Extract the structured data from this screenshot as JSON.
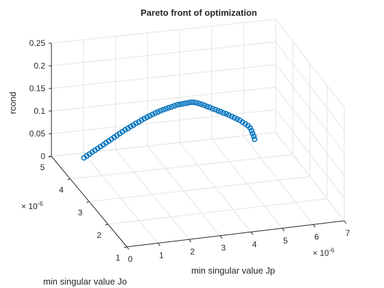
{
  "chart_data": {
    "type": "scatter",
    "title": "Pareto front of optimization",
    "xlabel": "min singular value Jp",
    "ylabel": "min singular value Jo",
    "zlabel": "rcond",
    "x_exponent_label": "× 10",
    "x_exponent_power": "-6",
    "y_exponent_label": "× 10",
    "y_exponent_power": "-6",
    "xlim": [
      0,
      7
    ],
    "ylim": [
      1,
      5
    ],
    "zlim": [
      0,
      0.25
    ],
    "x_ticks": [
      0,
      1,
      2,
      3,
      4,
      5,
      6,
      7
    ],
    "x_tick_labels": [
      "0",
      "1",
      "2",
      "3",
      "4",
      "5",
      "6",
      "7"
    ],
    "y_ticks": [
      1,
      2,
      3,
      4,
      5
    ],
    "y_tick_labels": [
      "1",
      "2",
      "3",
      "4",
      "5"
    ],
    "z_ticks": [
      0,
      0.05,
      0.1,
      0.15,
      0.2,
      0.25
    ],
    "z_tick_labels": [
      "0",
      "0.05",
      "0.1",
      "0.15",
      "0.2",
      "0.25"
    ],
    "grid": true,
    "marker_color": "#0072BD",
    "series": [
      {
        "points": [
          [
            0.9,
            4.8,
            0.0
          ],
          [
            0.98,
            4.79,
            0.004
          ],
          [
            1.06,
            4.78,
            0.008
          ],
          [
            1.14,
            4.77,
            0.012
          ],
          [
            1.22,
            4.76,
            0.016
          ],
          [
            1.3,
            4.75,
            0.02
          ],
          [
            1.38,
            4.74,
            0.024
          ],
          [
            1.46,
            4.73,
            0.028
          ],
          [
            1.54,
            4.72,
            0.032
          ],
          [
            1.62,
            4.71,
            0.036
          ],
          [
            1.7,
            4.7,
            0.04
          ],
          [
            1.78,
            4.69,
            0.044
          ],
          [
            1.86,
            4.68,
            0.048
          ],
          [
            1.94,
            4.67,
            0.052
          ],
          [
            2.02,
            4.66,
            0.056
          ],
          [
            2.1,
            4.65,
            0.06
          ],
          [
            2.18,
            4.64,
            0.063
          ],
          [
            2.26,
            4.63,
            0.067
          ],
          [
            2.34,
            4.62,
            0.07
          ],
          [
            2.42,
            4.61,
            0.074
          ],
          [
            2.5,
            4.6,
            0.077
          ],
          [
            2.58,
            4.59,
            0.081
          ],
          [
            2.66,
            4.58,
            0.084
          ],
          [
            2.74,
            4.57,
            0.087
          ],
          [
            2.82,
            4.56,
            0.09
          ],
          [
            2.9,
            4.55,
            0.093
          ],
          [
            2.98,
            4.54,
            0.096
          ],
          [
            3.06,
            4.53,
            0.098
          ],
          [
            3.14,
            4.52,
            0.101
          ],
          [
            3.22,
            4.51,
            0.103
          ],
          [
            3.3,
            4.5,
            0.105
          ],
          [
            3.38,
            4.49,
            0.107
          ],
          [
            3.46,
            4.48,
            0.109
          ],
          [
            3.54,
            4.47,
            0.111
          ],
          [
            3.62,
            4.46,
            0.113
          ],
          [
            3.7,
            4.45,
            0.114
          ],
          [
            3.78,
            4.44,
            0.115
          ],
          [
            3.86,
            4.43,
            0.116
          ],
          [
            3.94,
            4.42,
            0.117
          ],
          [
            4.02,
            4.41,
            0.118
          ],
          [
            4.1,
            4.4,
            0.118
          ],
          [
            4.18,
            4.39,
            0.117
          ],
          [
            4.26,
            4.38,
            0.115
          ],
          [
            4.34,
            4.37,
            0.113
          ],
          [
            4.42,
            4.36,
            0.111
          ],
          [
            4.5,
            4.35,
            0.108
          ],
          [
            4.58,
            4.34,
            0.106
          ],
          [
            4.66,
            4.33,
            0.103
          ],
          [
            4.74,
            4.32,
            0.101
          ],
          [
            4.82,
            4.31,
            0.098
          ],
          [
            4.9,
            4.3,
            0.096
          ],
          [
            4.98,
            4.29,
            0.093
          ],
          [
            5.06,
            4.28,
            0.091
          ],
          [
            5.14,
            4.27,
            0.088
          ],
          [
            5.22,
            4.26,
            0.085
          ],
          [
            5.3,
            4.25,
            0.082
          ],
          [
            5.38,
            4.24,
            0.079
          ],
          [
            5.46,
            4.23,
            0.076
          ],
          [
            5.54,
            4.22,
            0.072
          ],
          [
            5.62,
            4.21,
            0.068
          ],
          [
            5.7,
            4.2,
            0.064
          ],
          [
            5.76,
            4.19,
            0.059
          ],
          [
            5.8,
            4.18,
            0.053
          ],
          [
            5.83,
            4.17,
            0.047
          ],
          [
            5.86,
            4.16,
            0.041
          ],
          [
            5.88,
            4.15,
            0.035
          ]
        ]
      }
    ]
  }
}
